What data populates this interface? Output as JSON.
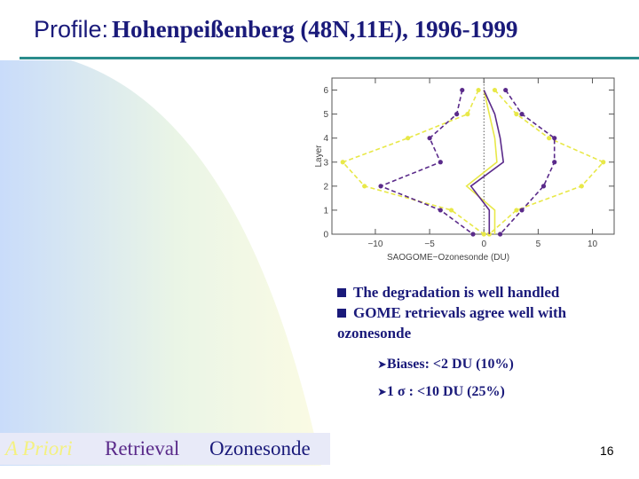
{
  "slide": {
    "title_prefix": "Profile:",
    "title_main": "Hohenpeißenberg (48N,11E), 1996-1999",
    "bullets": [
      "The degradation is well handled",
      "GOME retrievals agree well with ozonesonde"
    ],
    "sub_bullets": [
      {
        "lead": "Biases:",
        "text": "<2 DU (10%)"
      },
      {
        "lead": "1",
        "symbol": "σ",
        "text": ": <10 DU (25%)"
      }
    ],
    "legend": [
      {
        "label": "A Priori",
        "color": "#f4f180"
      },
      {
        "label": "Retrieval",
        "color": "#5a2a8a"
      },
      {
        "label": "Ozonesonde",
        "color": "#1a1a7a"
      }
    ],
    "page_number": "16"
  },
  "chart_data": {
    "type": "line",
    "xlabel": "SAOGOME−Ozonesonde (DU)",
    "ylabel": "Layer",
    "xlim": [
      -14,
      12
    ],
    "ylim": [
      0,
      6.5
    ],
    "xticks": [
      "−10",
      "−5",
      "0",
      "5",
      "10"
    ],
    "xtick_values": [
      -10,
      -5,
      0,
      5,
      10
    ],
    "yticks": [
      "0",
      "1",
      "2",
      "3",
      "4",
      "5",
      "6"
    ],
    "ytick_values": [
      0,
      1,
      2,
      3,
      4,
      5,
      6
    ],
    "series": [
      {
        "color": "#e8e848",
        "style": "solid",
        "points": [
          [
            0,
            6
          ],
          [
            0.5,
            5
          ],
          [
            1,
            4
          ],
          [
            1.2,
            3
          ],
          [
            -1.6,
            2
          ],
          [
            1,
            1
          ],
          [
            1,
            0
          ]
        ]
      },
      {
        "color": "#e8e848",
        "style": "dashed",
        "points": [
          [
            -0.5,
            6
          ],
          [
            -1.5,
            5
          ],
          [
            -7,
            4
          ],
          [
            -13,
            3
          ],
          [
            -11,
            2
          ],
          [
            -3,
            1
          ],
          [
            0,
            0
          ]
        ]
      },
      {
        "color": "#e8e848",
        "style": "dashed",
        "points": [
          [
            1,
            6
          ],
          [
            3,
            5
          ],
          [
            6,
            4
          ],
          [
            11,
            3
          ],
          [
            9,
            2
          ],
          [
            3,
            1
          ],
          [
            0.5,
            0
          ]
        ]
      },
      {
        "color": "#5a2a8a",
        "style": "solid",
        "points": [
          [
            0,
            6
          ],
          [
            1,
            5
          ],
          [
            1.5,
            4
          ],
          [
            1.8,
            3
          ],
          [
            -1.2,
            2
          ],
          [
            0.5,
            1
          ],
          [
            0.5,
            0
          ]
        ]
      },
      {
        "color": "#5a2a8a",
        "style": "dashed",
        "points": [
          [
            -2,
            6
          ],
          [
            -2.5,
            5
          ],
          [
            -5,
            4
          ],
          [
            -4,
            3
          ],
          [
            -9.5,
            2
          ],
          [
            -4,
            1
          ],
          [
            -1,
            0
          ]
        ]
      },
      {
        "color": "#5a2a8a",
        "style": "dashed",
        "points": [
          [
            2,
            6
          ],
          [
            3.5,
            5
          ],
          [
            6.5,
            4
          ],
          [
            6.5,
            3
          ],
          [
            5.5,
            2
          ],
          [
            3.5,
            1
          ],
          [
            1.5,
            0
          ]
        ]
      }
    ]
  }
}
